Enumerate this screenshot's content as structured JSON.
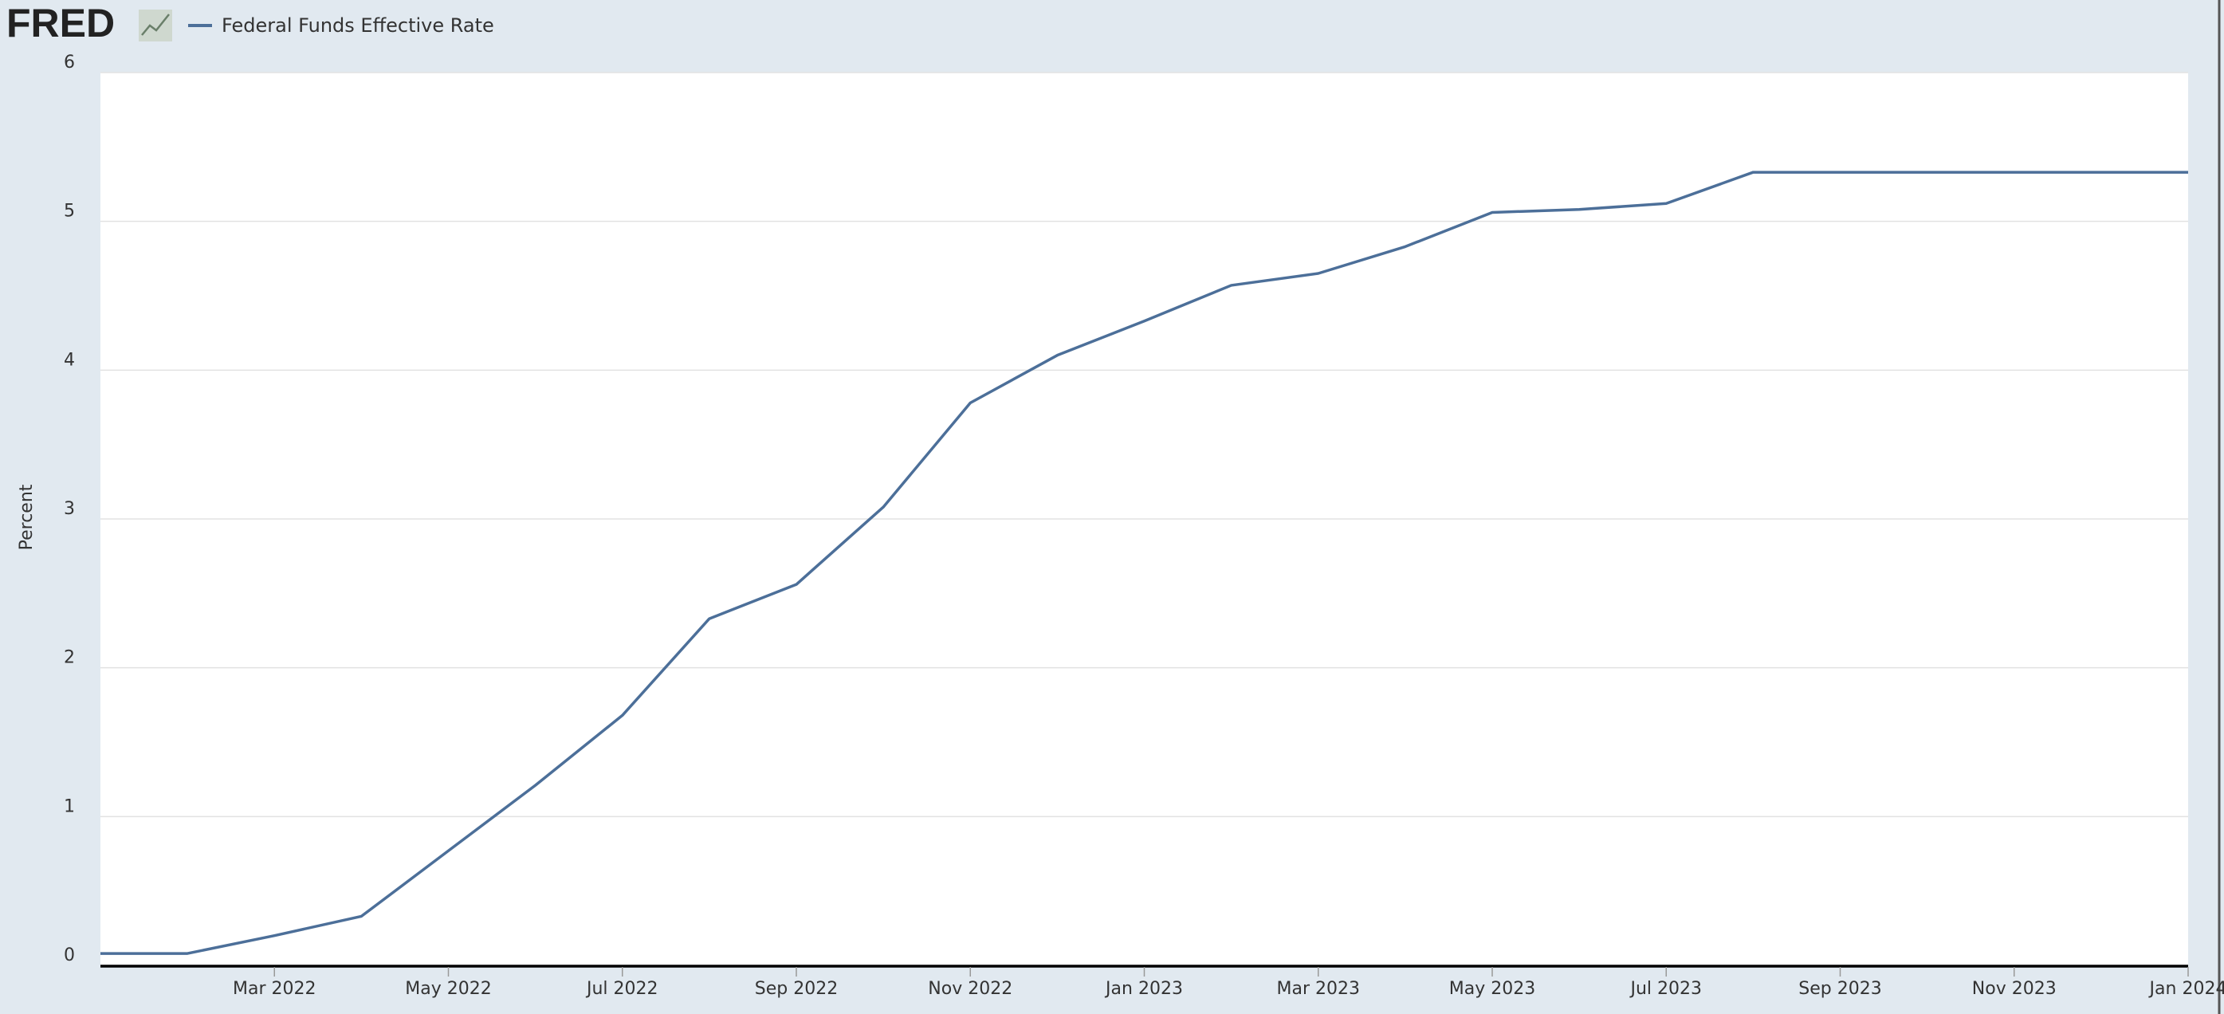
{
  "logo": "FRED",
  "chart_data": {
    "type": "line",
    "y_label": "Percent",
    "x": [
      "2022-01",
      "2022-02",
      "2022-03",
      "2022-04",
      "2022-05",
      "2022-06",
      "2022-07",
      "2022-08",
      "2022-09",
      "2022-10",
      "2022-11",
      "2022-12",
      "2023-01",
      "2023-02",
      "2023-03",
      "2023-04",
      "2023-05",
      "2023-06",
      "2023-07",
      "2023-08",
      "2023-09",
      "2023-10",
      "2023-11",
      "2023-12",
      "2024-01"
    ],
    "series": [
      {
        "name": "Federal Funds Effective Rate",
        "color": "#4c6f99",
        "values": [
          0.08,
          0.08,
          0.2,
          0.33,
          0.77,
          1.21,
          1.68,
          2.33,
          2.56,
          3.08,
          3.78,
          4.1,
          4.33,
          4.57,
          4.65,
          4.83,
          5.06,
          5.08,
          5.12,
          5.33,
          5.33,
          5.33,
          5.33,
          5.33,
          5.33
        ]
      }
    ],
    "xlim": [
      "2022-01",
      "2024-01"
    ],
    "xticks": [
      {
        "value": "2022-03",
        "label": "Mar 2022"
      },
      {
        "value": "2022-05",
        "label": "May 2022"
      },
      {
        "value": "2022-07",
        "label": "Jul 2022"
      },
      {
        "value": "2022-09",
        "label": "Sep 2022"
      },
      {
        "value": "2022-11",
        "label": "Nov 2022"
      },
      {
        "value": "2023-01",
        "label": "Jan 2023"
      },
      {
        "value": "2023-03",
        "label": "Mar 2023"
      },
      {
        "value": "2023-05",
        "label": "May 2023"
      },
      {
        "value": "2023-07",
        "label": "Jul 2023"
      },
      {
        "value": "2023-09",
        "label": "Sep 2023"
      },
      {
        "value": "2023-11",
        "label": "Nov 2023"
      },
      {
        "value": "2024-01",
        "label": "Jan 2024"
      }
    ],
    "ylim": [
      0,
      6
    ],
    "yticks": [
      0,
      1,
      2,
      3,
      4,
      5,
      6
    ],
    "grid": true
  }
}
